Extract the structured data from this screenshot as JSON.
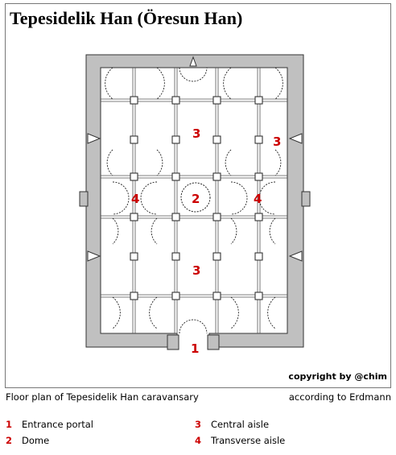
{
  "title": "Tepesidelik Han (Öresun Han)",
  "copyright": "copyright by @chim",
  "caption_left": "Floor plan of Tepesidelik Han caravansary",
  "caption_right": "according to Erdmann",
  "plan_labels": {
    "entrance": "1",
    "dome": "2",
    "central_top": "3",
    "central_bottom": "3",
    "aisle_right": "3",
    "transverse_left": "4",
    "transverse_right": "4"
  },
  "legend": [
    {
      "num": "1",
      "label": "Entrance portal"
    },
    {
      "num": "2",
      "label": "Dome"
    },
    {
      "num": "3",
      "label": "Central aisle"
    },
    {
      "num": "4",
      "label": "Transverse aisle"
    }
  ],
  "colors": {
    "wall": "#c0c0c0",
    "label": "#cc0000"
  }
}
